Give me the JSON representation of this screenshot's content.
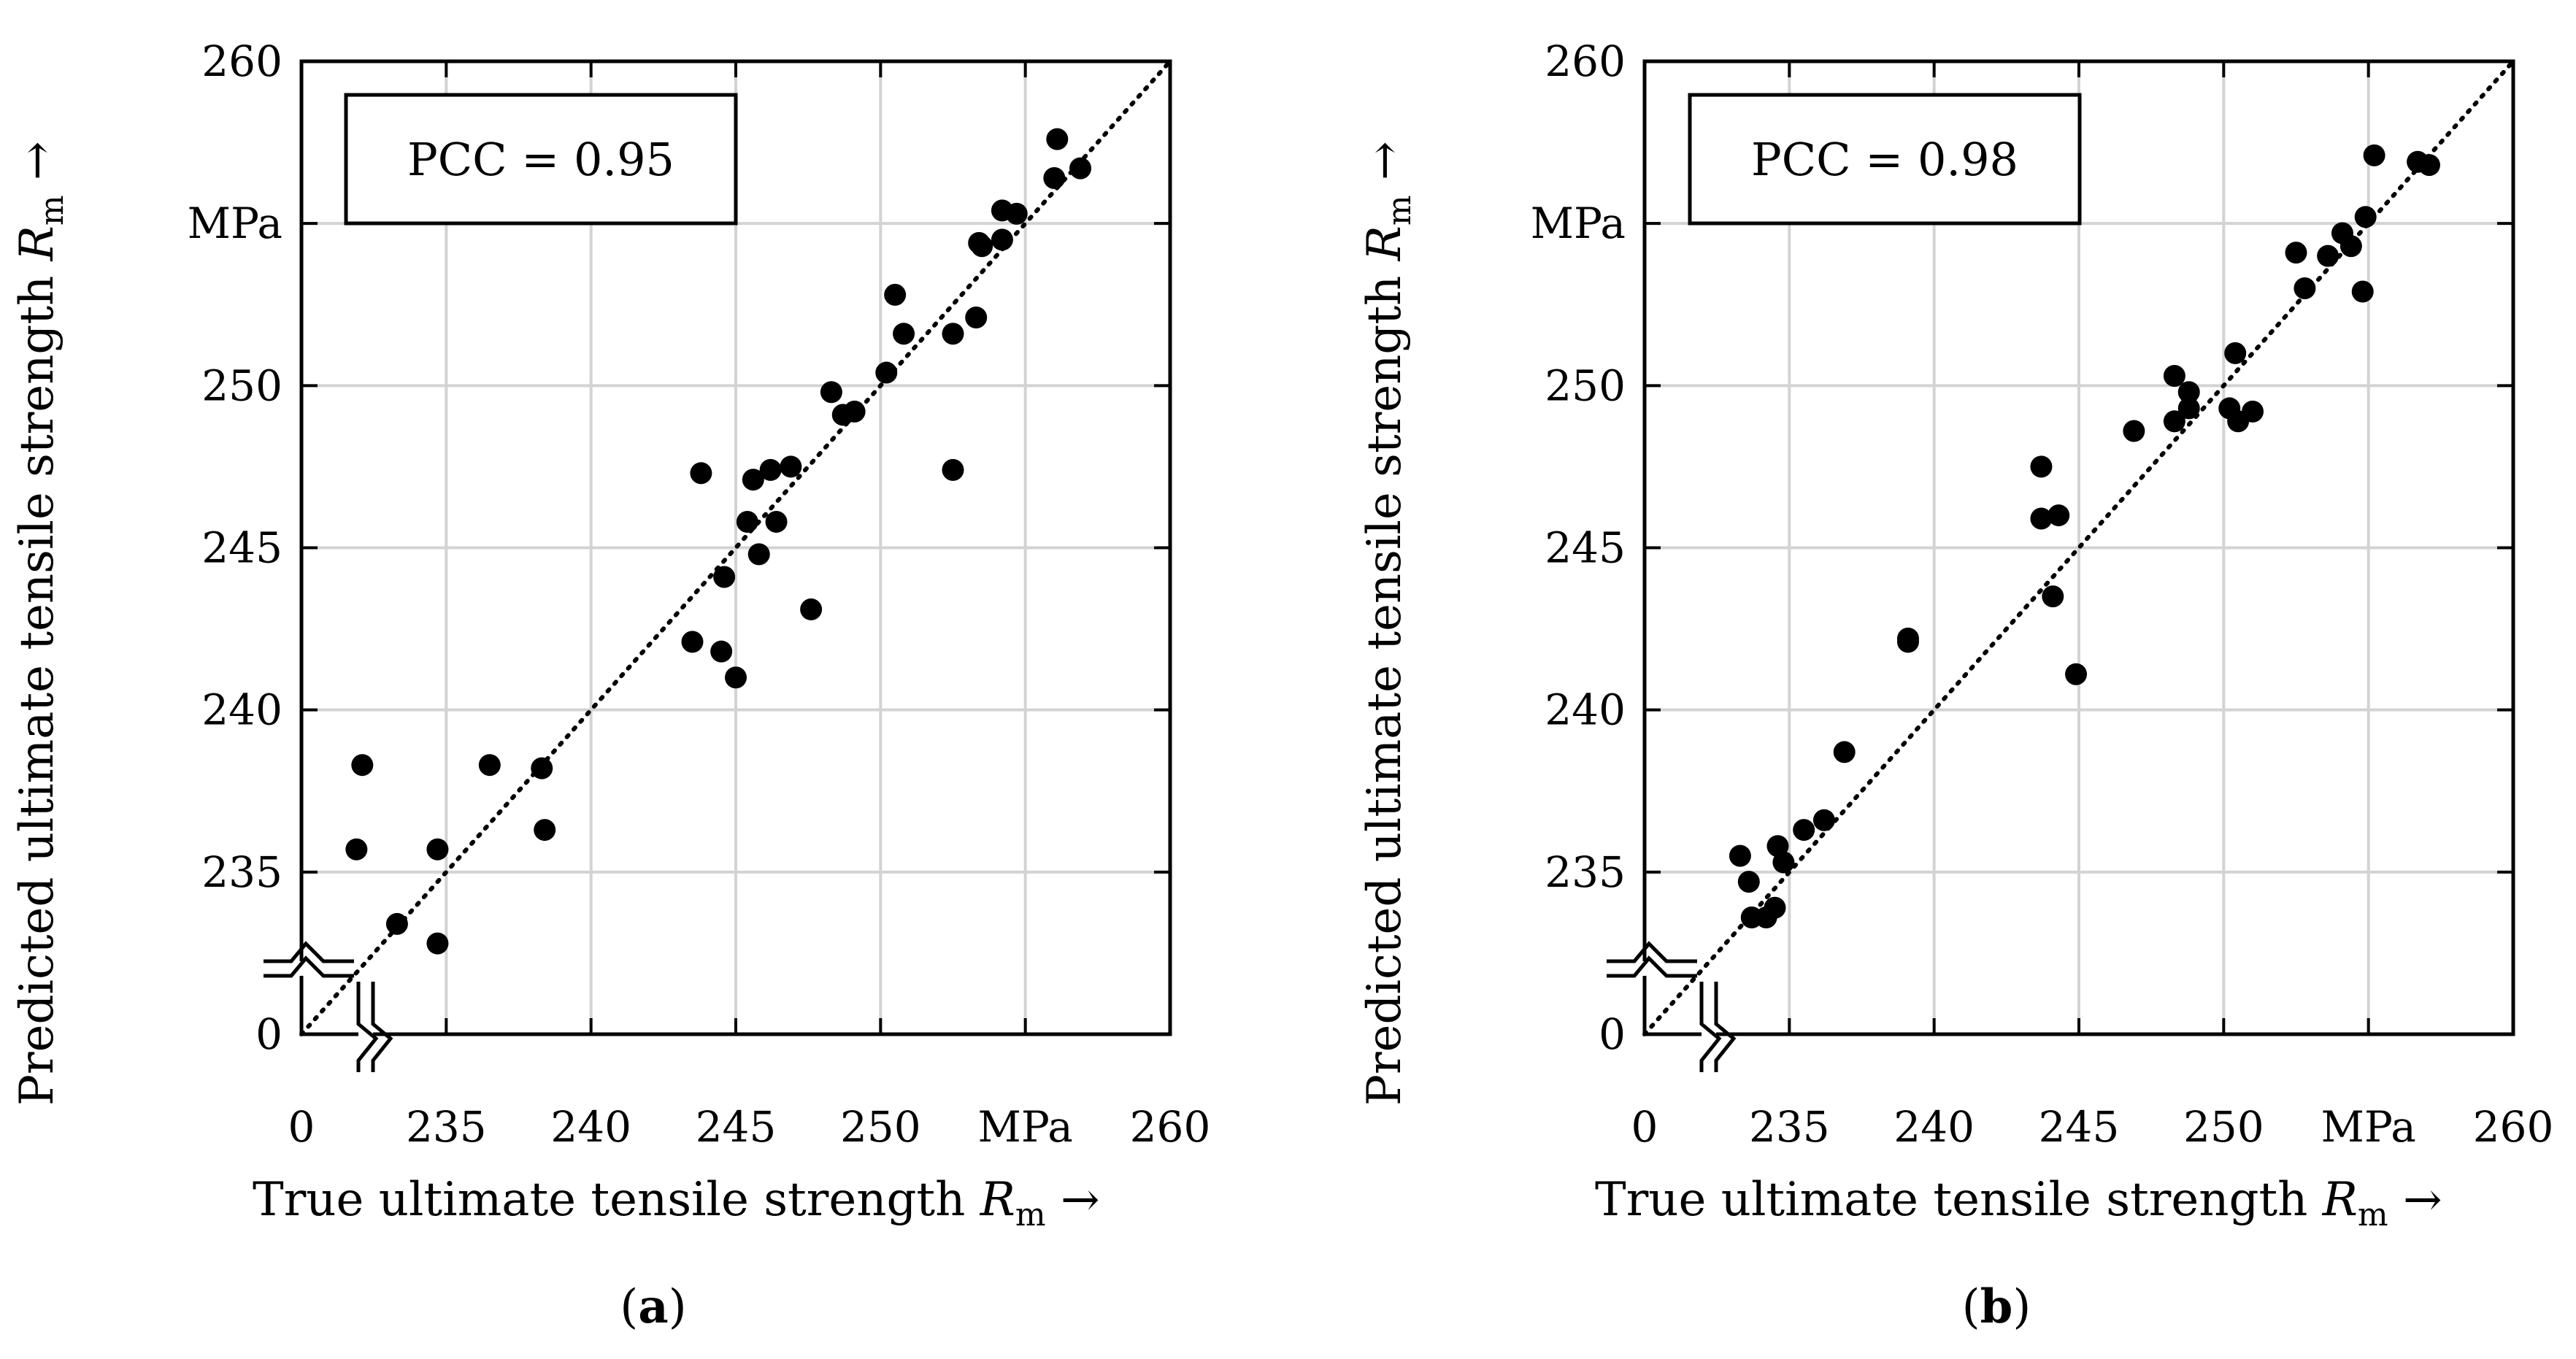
{
  "chart_data": [
    {
      "type": "scatter",
      "panel": "(a)",
      "panel_letter": "a",
      "annotation": "PCC = 0.95",
      "xlabel": "True ultimate tensile strength R_m →",
      "ylabel": "Predicted ultimate tensile strength R_m →",
      "axis_text": {
        "xlabel_main": "True ultimate tensile strength ",
        "ylabel_main": "Predicted ultimate tensile strength ",
        "var": "R",
        "sub": "m",
        "arrow": " →"
      },
      "x_ticks": [
        "0",
        "235",
        "240",
        "245",
        "250",
        "MPa",
        "260"
      ],
      "y_ticks": [
        "0",
        "235",
        "240",
        "245",
        "250",
        "MPa",
        "260"
      ],
      "xlim": [
        230,
        260
      ],
      "ylim": [
        230,
        260
      ],
      "axis_break": "broken below 235 (starts at 0)",
      "reference_line": "y = x",
      "x": [
        232.1,
        231.9,
        233.3,
        234.7,
        234.7,
        236.5,
        238.4,
        238.3,
        243.5,
        243.8,
        244.5,
        244.6,
        245.0,
        245.4,
        245.6,
        245.8,
        246.2,
        246.4,
        246.9,
        247.6,
        248.3,
        248.7,
        249.1,
        250.2,
        250.5,
        250.8,
        252.5,
        252.5,
        253.4,
        253.5,
        253.3,
        254.2,
        254.2,
        254.7,
        256.0,
        256.1,
        256.9
      ],
      "y": [
        238.3,
        235.7,
        233.4,
        232.8,
        235.7,
        238.3,
        236.3,
        238.2,
        242.1,
        247.3,
        241.8,
        244.1,
        241.0,
        245.8,
        247.1,
        244.8,
        247.4,
        245.8,
        247.5,
        243.1,
        249.8,
        249.1,
        249.2,
        250.4,
        252.8,
        251.6,
        247.4,
        251.6,
        254.4,
        254.3,
        252.1,
        255.4,
        254.5,
        255.3,
        256.4,
        257.6,
        256.7
      ]
    },
    {
      "type": "scatter",
      "panel": "(b)",
      "panel_letter": "b",
      "annotation": "PCC = 0.98",
      "xlabel": "True ultimate tensile strength R_m →",
      "ylabel": "Predicted ultimate tensile strength R_m →",
      "axis_text": {
        "xlabel_main": "True ultimate tensile strength ",
        "ylabel_main": "Predicted ultimate tensile strength ",
        "var": "R",
        "sub": "m",
        "arrow": " →"
      },
      "x_ticks": [
        "0",
        "235",
        "240",
        "245",
        "250",
        "MPa",
        "260"
      ],
      "y_ticks": [
        "0",
        "235",
        "240",
        "245",
        "250",
        "MPa",
        "260"
      ],
      "xlim": [
        230,
        260
      ],
      "ylim": [
        230,
        260
      ],
      "axis_break": "broken below 235 (starts at 0)",
      "reference_line": "y = x",
      "x": [
        233.3,
        233.6,
        233.7,
        234.2,
        234.5,
        234.6,
        234.8,
        235.5,
        236.2,
        236.9,
        239.1,
        239.1,
        243.7,
        243.7,
        244.1,
        244.3,
        244.9,
        246.9,
        248.3,
        248.3,
        248.8,
        248.8,
        250.2,
        250.4,
        250.5,
        251.0,
        252.5,
        252.8,
        253.6,
        254.1,
        254.4,
        254.8,
        254.9,
        255.2,
        256.7,
        257.1
      ],
      "y": [
        235.5,
        234.7,
        233.6,
        233.6,
        233.9,
        235.8,
        235.3,
        236.3,
        236.6,
        238.7,
        242.1,
        242.2,
        245.9,
        247.5,
        243.5,
        246.0,
        241.1,
        248.6,
        248.9,
        250.3,
        249.3,
        249.8,
        249.3,
        251.0,
        248.9,
        249.2,
        254.1,
        253.0,
        254.0,
        254.7,
        254.3,
        252.9,
        255.2,
        257.1,
        256.9,
        256.8
      ]
    }
  ]
}
